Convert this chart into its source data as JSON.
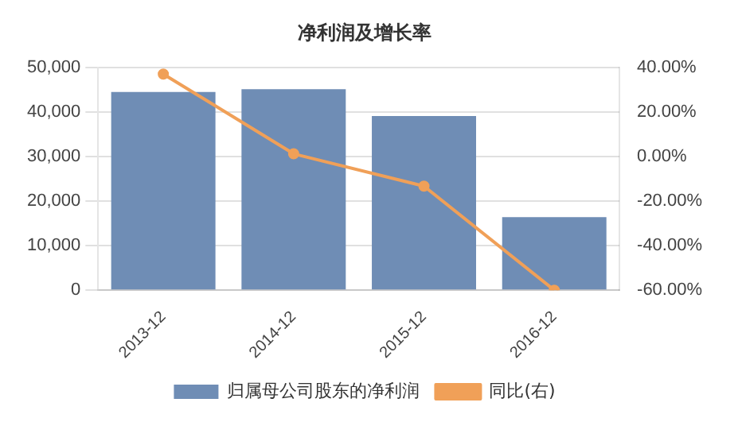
{
  "chart_data": {
    "type": "bar",
    "title": "净利润及增长率",
    "categories": [
      "2013-12",
      "2014-12",
      "2015-12",
      "2016-12"
    ],
    "series": [
      {
        "name": "归属母公司股东的净利润",
        "color": "#6f8db5",
        "values": [
          44500,
          45100,
          39100,
          16400
        ]
      },
      {
        "name": "同比(右)",
        "type": "line",
        "axis": "y2",
        "color": "#f0a058",
        "values": [
          37,
          1.2,
          -13.3,
          -60
        ]
      }
    ],
    "ylim": [
      0,
      50000
    ],
    "yticks": [
      {
        "value": 0,
        "label": "0"
      },
      {
        "value": 10000,
        "label": "10,000"
      },
      {
        "value": 20000,
        "label": "20,000"
      },
      {
        "value": 30000,
        "label": "30,000"
      },
      {
        "value": 40000,
        "label": "40,000"
      },
      {
        "value": 50000,
        "label": "50,000"
      }
    ],
    "y2lim": [
      -60,
      40
    ],
    "y2ticks": [
      {
        "value": -60,
        "label": "-60.00%"
      },
      {
        "value": -40,
        "label": "-40.00%"
      },
      {
        "value": -20,
        "label": "-20.00%"
      },
      {
        "value": 0,
        "label": "0.00%"
      },
      {
        "value": 20,
        "label": "20.00%"
      },
      {
        "value": 40,
        "label": "40.00%"
      }
    ],
    "grid": "y",
    "legend": "bottom",
    "marker": "circle",
    "line_style": "solid"
  }
}
